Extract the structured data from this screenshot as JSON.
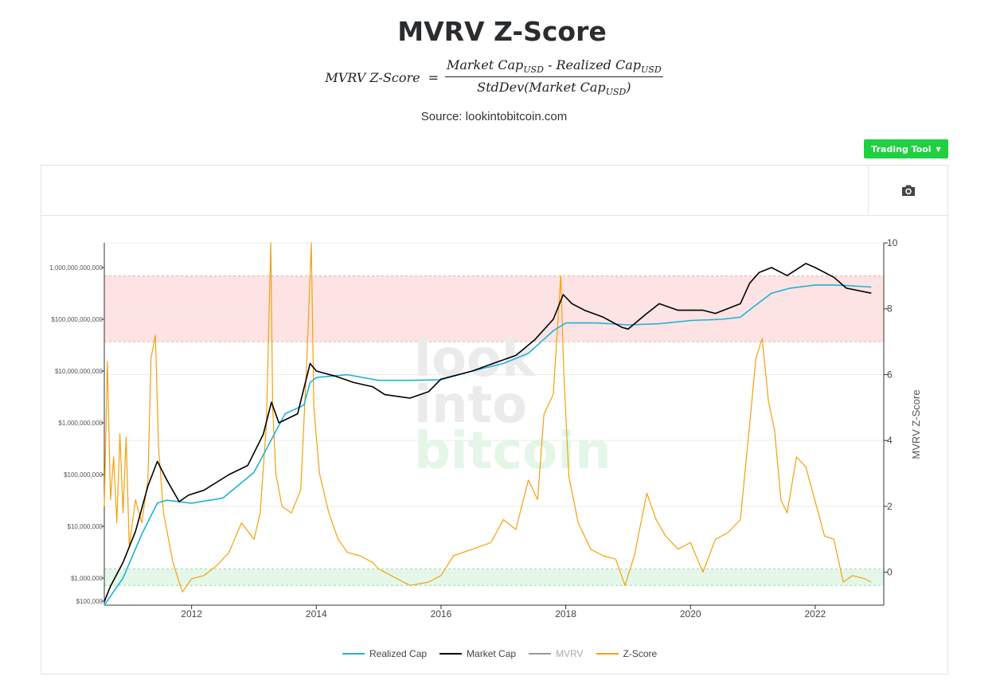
{
  "page": {
    "title": "MVRV Z-Score",
    "formula": {
      "lhs": "MVRV Z-Score",
      "equals": "=",
      "num_a": "Market Cap",
      "num_sep": " - ",
      "num_b": "Realized Cap",
      "den_pre": "StdDev(Market Cap",
      "den_post": ")",
      "sub": "USD"
    },
    "source": "Source: lookintobitcoin.com",
    "trading_tool_label": "Trading Tool",
    "camera_icon": "camera-icon",
    "watermark": [
      "look",
      "into",
      "bitcoin"
    ]
  },
  "colors": {
    "realized_cap": "#1fb3d9",
    "market_cap": "#000000",
    "mvrv": "#999999",
    "z_score": "#f5a00a",
    "red_band": "#fde3e3",
    "green_band": "#e4f8ea",
    "button": "#1fd041"
  },
  "chart_data": {
    "type": "line",
    "x_ticks": [
      "2012",
      "2014",
      "2016",
      "2018",
      "2020",
      "2022"
    ],
    "x_tick_years": [
      2012,
      2014,
      2016,
      2018,
      2020,
      2022
    ],
    "x_range": [
      2010.6,
      2023.1
    ],
    "y_left": {
      "scale": "log",
      "range": [
        300000,
        3000000000000
      ],
      "tick_labels": [
        "1,000,000,000,000",
        "$100,000,000,000",
        "$10,000,000,000",
        "$1,000,000,000",
        "$100,000,000",
        "$10,000,000",
        "$1,000,000",
        "$100,000"
      ],
      "tick_values": [
        1000000000000,
        100000000000,
        10000000000,
        1000000000,
        100000000,
        10000000,
        1000000,
        100000
      ]
    },
    "y_right": {
      "label": "MVRV Z-Score",
      "range": [
        -1,
        10
      ],
      "tick_labels": [
        "10",
        "8",
        "6",
        "4",
        "2",
        "0"
      ],
      "tick_values": [
        10,
        8,
        6,
        4,
        2,
        0
      ]
    },
    "bands": [
      {
        "name": "overvalued",
        "from": 7,
        "to": 9,
        "axis": "z"
      },
      {
        "name": "undervalued",
        "from": -0.4,
        "to": 0.1,
        "axis": "z"
      }
    ],
    "series": [
      {
        "name": "Realized Cap",
        "axis": "left",
        "x": [
          2010.6,
          2010.9,
          2011.2,
          2011.45,
          2011.6,
          2012.0,
          2012.5,
          2013.0,
          2013.5,
          2013.8,
          2013.9,
          2014.0,
          2014.5,
          2015.0,
          2015.5,
          2016.0,
          2016.5,
          2017.0,
          2017.4,
          2017.8,
          2018.0,
          2018.5,
          2019.0,
          2019.5,
          2020.0,
          2020.5,
          2020.8,
          2021.0,
          2021.3,
          2021.6,
          2022.0,
          2022.3,
          2022.5,
          2022.9
        ],
        "values": [
          300000,
          1000000,
          7000000,
          28000000,
          32000000,
          28000000,
          35000000,
          110000000,
          1500000000,
          2200000000,
          6000000000,
          7500000000,
          8500000000,
          6600000000,
          6600000000,
          6800000000,
          10000000000,
          14000000000,
          22000000000,
          60000000000,
          85000000000,
          85000000000,
          78000000000,
          82000000000,
          95000000000,
          100000000000,
          110000000000,
          170000000000,
          320000000000,
          400000000000,
          460000000000,
          460000000000,
          450000000000,
          420000000000
        ]
      },
      {
        "name": "Market Cap",
        "axis": "left",
        "x": [
          2010.6,
          2010.7,
          2010.9,
          2011.1,
          2011.3,
          2011.45,
          2011.6,
          2011.8,
          2011.95,
          2012.2,
          2012.6,
          2012.9,
          2013.15,
          2013.28,
          2013.4,
          2013.7,
          2013.9,
          2014.0,
          2014.3,
          2014.6,
          2014.9,
          2015.1,
          2015.5,
          2015.8,
          2016.0,
          2016.5,
          2016.9,
          2017.2,
          2017.5,
          2017.8,
          2017.96,
          2018.1,
          2018.3,
          2018.6,
          2018.9,
          2019.0,
          2019.3,
          2019.5,
          2019.8,
          2020.2,
          2020.4,
          2020.8,
          2020.95,
          2021.1,
          2021.3,
          2021.55,
          2021.85,
          2022.0,
          2022.3,
          2022.5,
          2022.9
        ],
        "values": [
          350000,
          700000,
          2000000,
          8000000,
          60000000,
          180000000,
          80000000,
          30000000,
          40000000,
          50000000,
          100000000,
          150000000,
          600000000,
          2500000000,
          1000000000,
          1500000000,
          14000000000,
          10000000000,
          8000000000,
          6000000000,
          5000000000,
          3500000000,
          3000000000,
          4000000000,
          7000000000,
          10000000000,
          15000000000,
          20000000000,
          40000000000,
          100000000000,
          300000000000,
          200000000000,
          150000000000,
          110000000000,
          70000000000,
          65000000000,
          130000000000,
          200000000000,
          150000000000,
          150000000000,
          130000000000,
          200000000000,
          500000000000,
          800000000000,
          1000000000000,
          700000000000,
          1200000000000,
          1000000000000,
          650000000000,
          400000000000,
          320000000000
        ]
      },
      {
        "name": "MVRV",
        "axis": "right",
        "hidden": true,
        "x": [],
        "values": []
      },
      {
        "name": "Z-Score",
        "axis": "right",
        "x": [
          2010.6,
          2010.65,
          2010.7,
          2010.75,
          2010.8,
          2010.85,
          2010.9,
          2010.95,
          2011.0,
          2011.1,
          2011.2,
          2011.3,
          2011.35,
          2011.42,
          2011.47,
          2011.55,
          2011.7,
          2011.85,
          2012.0,
          2012.2,
          2012.4,
          2012.6,
          2012.8,
          2013.0,
          2013.1,
          2013.2,
          2013.27,
          2013.3,
          2013.35,
          2013.45,
          2013.6,
          2013.75,
          2013.85,
          2013.92,
          2013.96,
          2014.05,
          2014.2,
          2014.35,
          2014.5,
          2014.7,
          2014.9,
          2015.0,
          2015.2,
          2015.5,
          2015.8,
          2016.0,
          2016.2,
          2016.5,
          2016.8,
          2017.0,
          2017.2,
          2017.4,
          2017.55,
          2017.65,
          2017.8,
          2017.92,
          2017.97,
          2018.05,
          2018.2,
          2018.4,
          2018.6,
          2018.8,
          2018.95,
          2019.1,
          2019.3,
          2019.45,
          2019.6,
          2019.8,
          2020.0,
          2020.2,
          2020.4,
          2020.6,
          2020.8,
          2020.95,
          2021.05,
          2021.15,
          2021.25,
          2021.35,
          2021.45,
          2021.55,
          2021.7,
          2021.85,
          2021.95,
          2022.05,
          2022.15,
          2022.3,
          2022.45,
          2022.6,
          2022.8,
          2022.9
        ],
        "values": [
          2,
          6.4,
          2.2,
          3.5,
          1.5,
          4.2,
          1.8,
          4.1,
          0.8,
          2.2,
          1.5,
          2.8,
          6.5,
          7.2,
          3.8,
          1.8,
          0.3,
          -0.6,
          -0.2,
          -0.1,
          0.2,
          0.6,
          1.5,
          1.0,
          1.8,
          4.5,
          10.0,
          5.0,
          3.0,
          2.0,
          1.8,
          2.5,
          6.5,
          10.0,
          5.0,
          3.0,
          1.8,
          1.0,
          0.6,
          0.5,
          0.3,
          0.1,
          -0.1,
          -0.4,
          -0.3,
          -0.1,
          0.5,
          0.7,
          0.9,
          1.6,
          1.3,
          2.8,
          2.2,
          4.8,
          5.4,
          9.0,
          6.0,
          2.9,
          1.5,
          0.7,
          0.5,
          0.4,
          -0.4,
          0.5,
          2.4,
          1.6,
          1.1,
          0.7,
          0.9,
          0.0,
          1.0,
          1.2,
          1.6,
          4.5,
          6.5,
          7.1,
          5.2,
          4.3,
          2.2,
          1.8,
          3.5,
          3.2,
          2.5,
          1.8,
          1.1,
          1.0,
          -0.3,
          -0.1,
          -0.2,
          -0.3
        ]
      }
    ],
    "legend": [
      "Realized Cap",
      "Market Cap",
      "MVRV",
      "Z-Score"
    ],
    "legend_position": "bottom-center"
  }
}
